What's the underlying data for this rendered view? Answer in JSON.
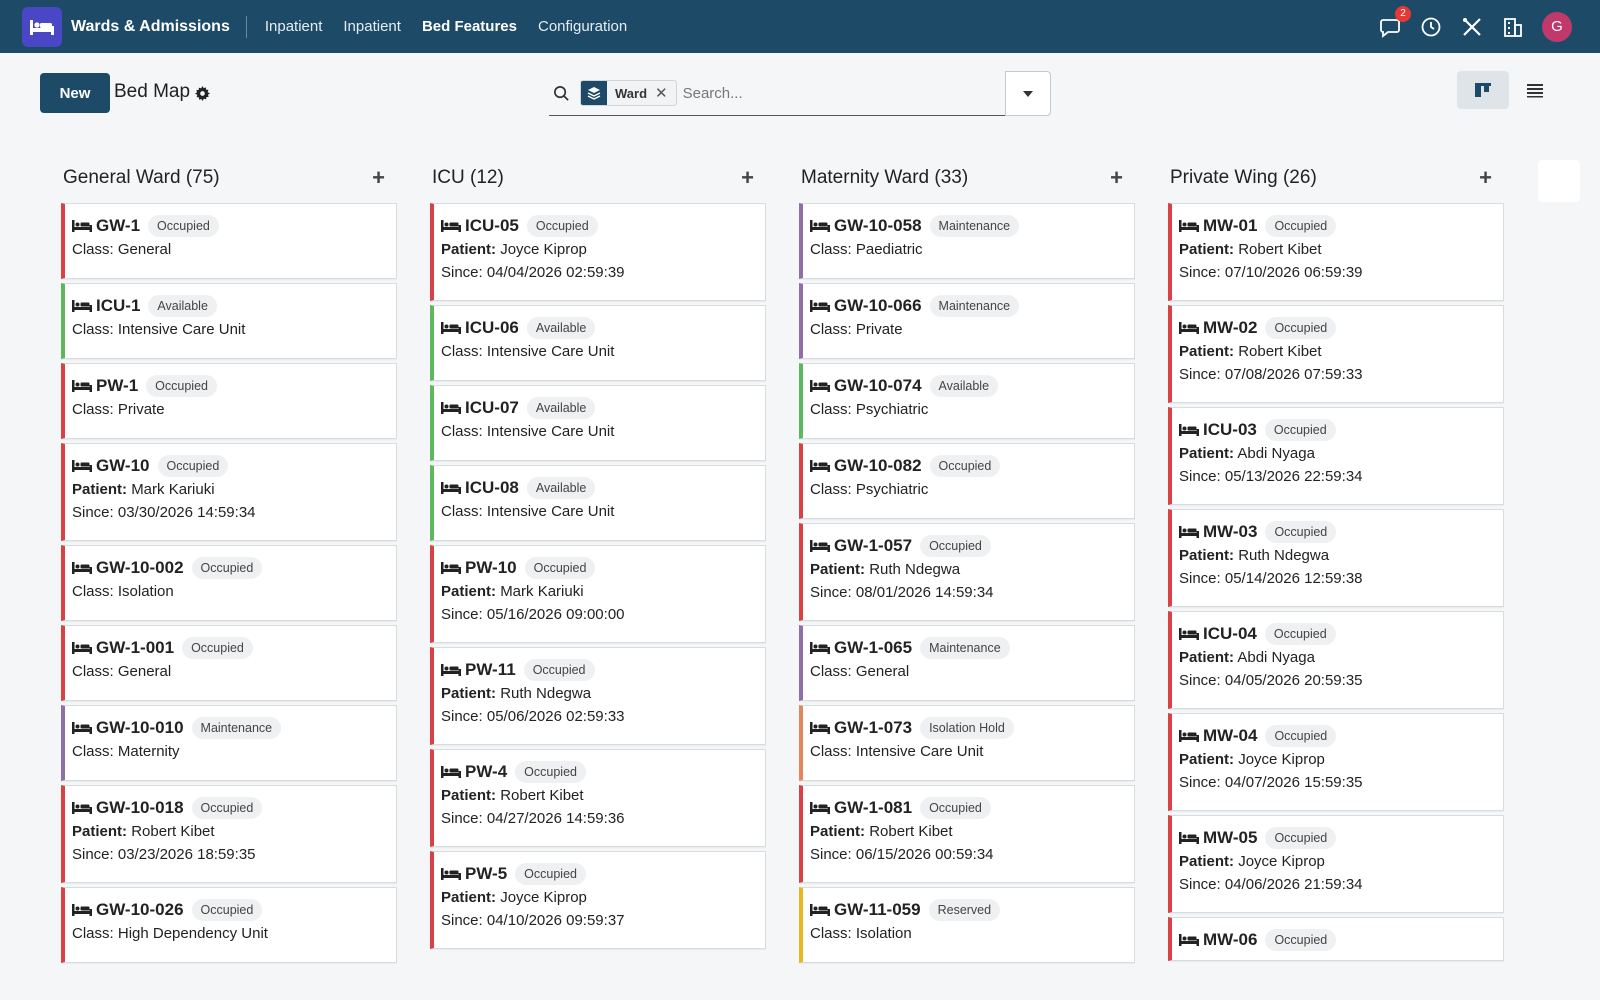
{
  "app": {
    "name": "Wards & Admissions",
    "avatar_initial": "G",
    "notif_count": "2"
  },
  "nav": [
    "Inpatient",
    "Inpatient",
    "Bed Features",
    "Configuration"
  ],
  "toolbar": {
    "new_label": "New",
    "title": "Bed Map"
  },
  "search": {
    "facet": "Ward",
    "placeholder": "Search...",
    "remove": "✕"
  },
  "labels": {
    "patient": "Patient:",
    "since": "Since:",
    "class": "Class:"
  },
  "columns": [
    {
      "title": "General Ward (75)",
      "cards": [
        {
          "code": "GW-1",
          "status": "Occupied",
          "kind": "occ",
          "class": "General"
        },
        {
          "code": "ICU-1",
          "status": "Available",
          "kind": "avl",
          "class": "Intensive Care Unit"
        },
        {
          "code": "PW-1",
          "status": "Occupied",
          "kind": "occ",
          "class": "Private"
        },
        {
          "code": "GW-10",
          "status": "Occupied",
          "kind": "occ",
          "patient": "Mark Kariuki",
          "since": "03/30/2026 14:59:34"
        },
        {
          "code": "GW-10-002",
          "status": "Occupied",
          "kind": "occ",
          "class": "Isolation"
        },
        {
          "code": "GW-1-001",
          "status": "Occupied",
          "kind": "occ",
          "class": "General"
        },
        {
          "code": "GW-10-010",
          "status": "Maintenance",
          "kind": "mnt",
          "class": "Maternity"
        },
        {
          "code": "GW-10-018",
          "status": "Occupied",
          "kind": "occ",
          "patient": "Robert Kibet",
          "since": "03/23/2026 18:59:35"
        },
        {
          "code": "GW-10-026",
          "status": "Occupied",
          "kind": "occ",
          "class": "High Dependency Unit"
        }
      ]
    },
    {
      "title": "ICU (12)",
      "cards": [
        {
          "code": "ICU-05",
          "status": "Occupied",
          "kind": "occ",
          "patient": "Joyce Kiprop",
          "since": "04/04/2026 02:59:39"
        },
        {
          "code": "ICU-06",
          "status": "Available",
          "kind": "avl",
          "class": "Intensive Care Unit"
        },
        {
          "code": "ICU-07",
          "status": "Available",
          "kind": "avl",
          "class": "Intensive Care Unit"
        },
        {
          "code": "ICU-08",
          "status": "Available",
          "kind": "avl",
          "class": "Intensive Care Unit"
        },
        {
          "code": "PW-10",
          "status": "Occupied",
          "kind": "occ",
          "patient": "Mark Kariuki",
          "since": "05/16/2026 09:00:00"
        },
        {
          "code": "PW-11",
          "status": "Occupied",
          "kind": "occ",
          "patient": "Ruth Ndegwa",
          "since": "05/06/2026 02:59:33"
        },
        {
          "code": "PW-4",
          "status": "Occupied",
          "kind": "occ",
          "patient": "Robert Kibet",
          "since": "04/27/2026 14:59:36"
        },
        {
          "code": "PW-5",
          "status": "Occupied",
          "kind": "occ",
          "patient": "Joyce Kiprop",
          "since": "04/10/2026 09:59:37"
        }
      ]
    },
    {
      "title": "Maternity Ward (33)",
      "cards": [
        {
          "code": "GW-10-058",
          "status": "Maintenance",
          "kind": "mnt",
          "class": "Paediatric"
        },
        {
          "code": "GW-10-066",
          "status": "Maintenance",
          "kind": "mnt",
          "class": "Private"
        },
        {
          "code": "GW-10-074",
          "status": "Available",
          "kind": "avl",
          "class": "Psychiatric"
        },
        {
          "code": "GW-10-082",
          "status": "Occupied",
          "kind": "occ",
          "class": "Psychiatric"
        },
        {
          "code": "GW-1-057",
          "status": "Occupied",
          "kind": "occ",
          "patient": "Ruth Ndegwa",
          "since": "08/01/2026 14:59:34"
        },
        {
          "code": "GW-1-065",
          "status": "Maintenance",
          "kind": "mnt",
          "class": "General"
        },
        {
          "code": "GW-1-073",
          "status": "Isolation Hold",
          "kind": "iso",
          "class": "Intensive Care Unit"
        },
        {
          "code": "GW-1-081",
          "status": "Occupied",
          "kind": "occ",
          "patient": "Robert Kibet",
          "since": "06/15/2026 00:59:34"
        },
        {
          "code": "GW-11-059",
          "status": "Reserved",
          "kind": "res",
          "class": "Isolation"
        }
      ]
    },
    {
      "title": "Private Wing (26)",
      "cards": [
        {
          "code": "MW-01",
          "status": "Occupied",
          "kind": "occ",
          "patient": "Robert Kibet",
          "since": "07/10/2026 06:59:39"
        },
        {
          "code": "MW-02",
          "status": "Occupied",
          "kind": "occ",
          "patient": "Robert Kibet",
          "since": "07/08/2026 07:59:33"
        },
        {
          "code": "ICU-03",
          "status": "Occupied",
          "kind": "occ",
          "patient": "Abdi Nyaga",
          "since": "05/13/2026 22:59:34"
        },
        {
          "code": "MW-03",
          "status": "Occupied",
          "kind": "occ",
          "patient": "Ruth Ndegwa",
          "since": "05/14/2026 12:59:38"
        },
        {
          "code": "ICU-04",
          "status": "Occupied",
          "kind": "occ",
          "patient": "Abdi Nyaga",
          "since": "04/05/2026 20:59:35"
        },
        {
          "code": "MW-04",
          "status": "Occupied",
          "kind": "occ",
          "patient": "Joyce Kiprop",
          "since": "04/07/2026 15:59:35"
        },
        {
          "code": "MW-05",
          "status": "Occupied",
          "kind": "occ",
          "patient": "Joyce Kiprop",
          "since": "04/06/2026 21:59:34"
        },
        {
          "code": "MW-06",
          "status": "Occupied",
          "kind": "occ",
          "patient": "",
          "since": ""
        }
      ]
    }
  ]
}
